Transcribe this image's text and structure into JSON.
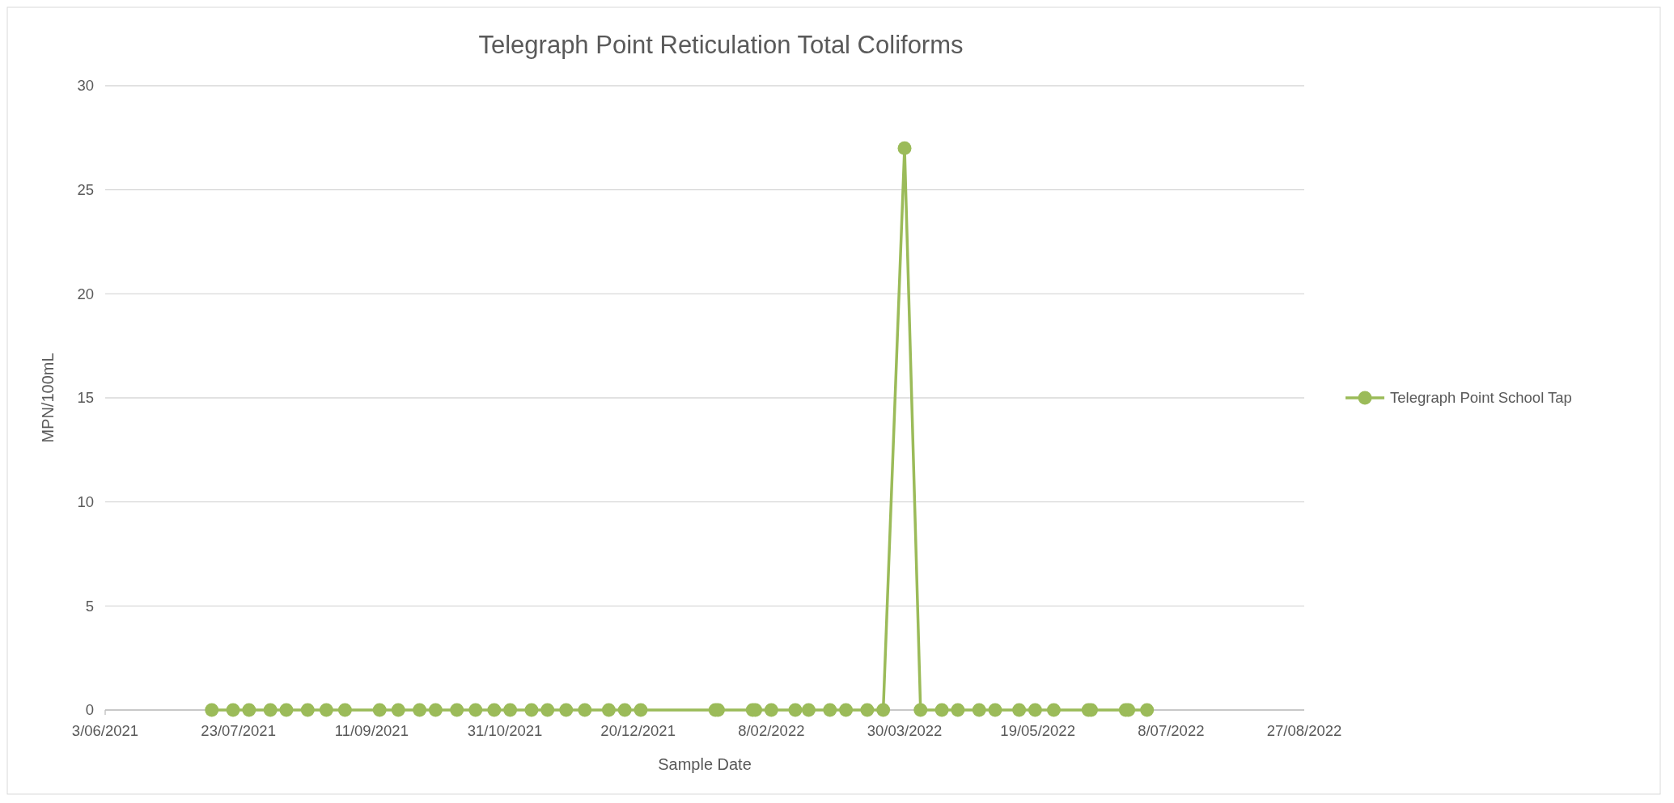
{
  "chart_data": {
    "type": "line",
    "title": "Telegraph Point Reticulation Total Coliforms",
    "xlabel": "Sample Date",
    "ylabel": "MPN/100mL",
    "x": [
      "2021-07-13",
      "2021-07-21",
      "2021-07-27",
      "2021-08-04",
      "2021-08-10",
      "2021-08-18",
      "2021-08-25",
      "2021-09-01",
      "2021-09-14",
      "2021-09-21",
      "2021-09-29",
      "2021-10-05",
      "2021-10-13",
      "2021-10-20",
      "2021-10-27",
      "2021-11-02",
      "2021-11-10",
      "2021-11-16",
      "2021-11-23",
      "2021-11-30",
      "2021-12-09",
      "2021-12-15",
      "2021-12-21",
      "2022-01-18",
      "2022-01-19",
      "2022-02-01",
      "2022-02-02",
      "2022-02-08",
      "2022-02-17",
      "2022-02-22",
      "2022-03-02",
      "2022-03-08",
      "2022-03-16",
      "2022-03-22",
      "2022-03-30",
      "2022-04-05",
      "2022-04-13",
      "2022-04-19",
      "2022-04-27",
      "2022-05-03",
      "2022-05-12",
      "2022-05-18",
      "2022-05-25",
      "2022-06-07",
      "2022-06-08",
      "2022-06-21",
      "2022-06-22",
      "2022-06-29"
    ],
    "series": [
      {
        "name": "Telegraph Point School Tap",
        "color": "#9bbb59",
        "values": [
          0,
          0,
          0,
          0,
          0,
          0,
          0,
          0,
          0,
          0,
          0,
          0,
          0,
          0,
          0,
          0,
          0,
          0,
          0,
          0,
          0,
          0,
          0,
          0,
          0,
          0,
          0,
          0,
          0,
          0,
          0,
          0,
          0,
          0,
          27,
          0,
          0,
          0,
          0,
          0,
          0,
          0,
          0,
          0,
          0,
          0,
          0,
          0
        ]
      }
    ],
    "xlim": [
      "2021-06-03",
      "2022-08-27"
    ],
    "xticks": [
      {
        "value": "2021-06-03",
        "label": "3/06/2021"
      },
      {
        "value": "2021-07-23",
        "label": "23/07/2021"
      },
      {
        "value": "2021-09-11",
        "label": "11/09/2021"
      },
      {
        "value": "2021-10-31",
        "label": "31/10/2021"
      },
      {
        "value": "2021-12-20",
        "label": "20/12/2021"
      },
      {
        "value": "2022-02-08",
        "label": "8/02/2022"
      },
      {
        "value": "2022-03-30",
        "label": "30/03/2022"
      },
      {
        "value": "2022-05-19",
        "label": "19/05/2022"
      },
      {
        "value": "2022-07-08",
        "label": "8/07/2022"
      },
      {
        "value": "2022-08-27",
        "label": "27/08/2022"
      }
    ],
    "ylim": [
      0,
      30
    ],
    "yticks": [
      0,
      5,
      10,
      15,
      20,
      25,
      30
    ],
    "grid": "y",
    "legend": "right",
    "marker": "circle",
    "line_style": "solid"
  }
}
